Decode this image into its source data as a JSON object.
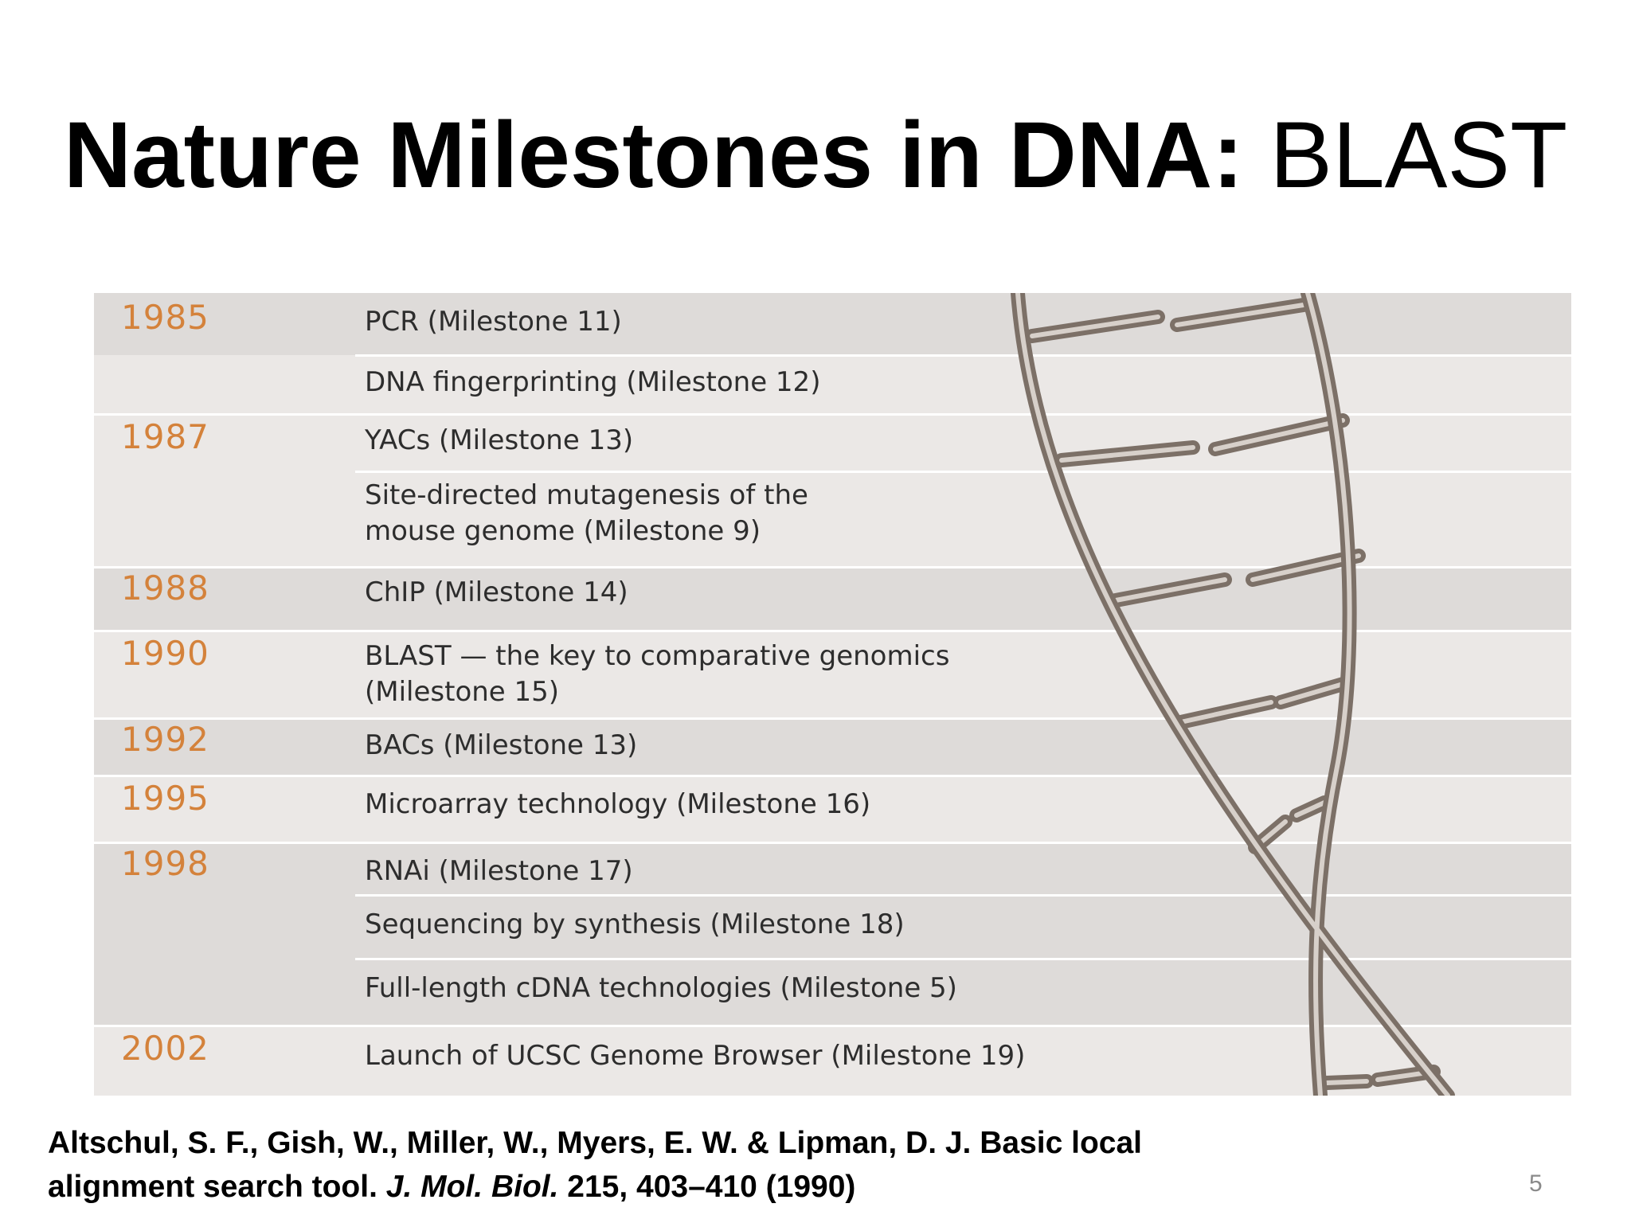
{
  "title": {
    "bold": "Nature Milestones in DNA:",
    "normal": "BLAST"
  },
  "timeline": {
    "groups": [
      {
        "year": "1985",
        "events": [
          "PCR (Milestone 11)",
          "DNA fingerprinting (Milestone 12)"
        ]
      },
      {
        "year": "1987",
        "events": [
          "YACs (Milestone 13)",
          "Site-directed mutagenesis of the\nmouse genome (Milestone 9)"
        ]
      },
      {
        "year": "1988",
        "events": [
          "ChIP (Milestone 14)"
        ]
      },
      {
        "year": "1990",
        "events": [
          "BLAST — the key to comparative genomics\n(Milestone 15)"
        ]
      },
      {
        "year": "1992",
        "events": [
          "BACs (Milestone 13)"
        ]
      },
      {
        "year": "1995",
        "events": [
          "Microarray technology (Milestone 16)"
        ]
      },
      {
        "year": "1998",
        "events": [
          "RNAi (Milestone 17)",
          "Sequencing by synthesis (Milestone 18)",
          "Full-length cDNA technologies (Milestone 5)"
        ]
      },
      {
        "year": "2002",
        "events": [
          "Launch of UCSC Genome Browser (Milestone 19)"
        ]
      }
    ]
  },
  "citation": {
    "authors": "Altschul, S. F., Gish, W., Miller, W., Myers, E. W. & Lipman, D. J. Basic local",
    "title_part": "alignment search tool.",
    "journal": "J. Mol. Biol.",
    "details": "215, 403–410 (1990)"
  },
  "page_number": "5",
  "colors": {
    "year": "#d4823b",
    "helix": "#8c7f75"
  }
}
